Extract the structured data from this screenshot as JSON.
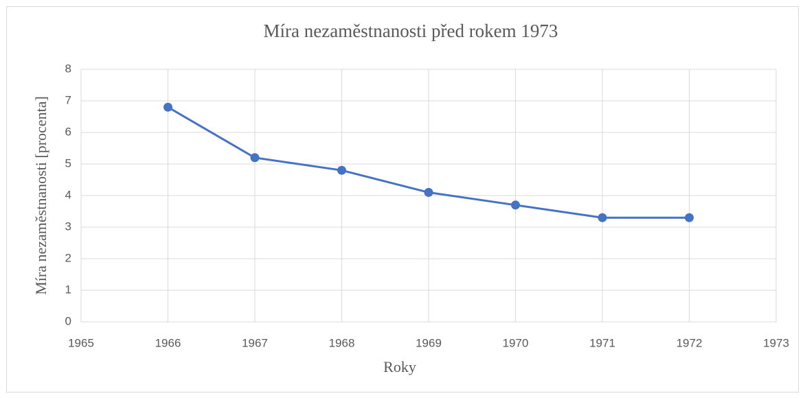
{
  "chart_data": {
    "type": "line",
    "title": "Míra nezaměstnanosti před rokem 1973",
    "x_label": "Roky",
    "y_label": "Míra nezaměstnanosti [procenta]",
    "x": [
      1966,
      1967,
      1968,
      1969,
      1970,
      1971,
      1972
    ],
    "series": [
      {
        "name": "Míra nezaměstnanosti",
        "color": "#4472c4",
        "values": [
          6.8,
          5.2,
          4.8,
          4.1,
          3.7,
          3.3,
          3.3
        ]
      }
    ],
    "xlim": [
      1965,
      1973
    ],
    "xticks": [
      1965,
      1966,
      1967,
      1968,
      1969,
      1970,
      1971,
      1972,
      1973
    ],
    "ylim": [
      0,
      8
    ],
    "yticks": [
      0,
      1,
      2,
      3,
      4,
      5,
      6,
      7,
      8
    ],
    "grid": true
  }
}
